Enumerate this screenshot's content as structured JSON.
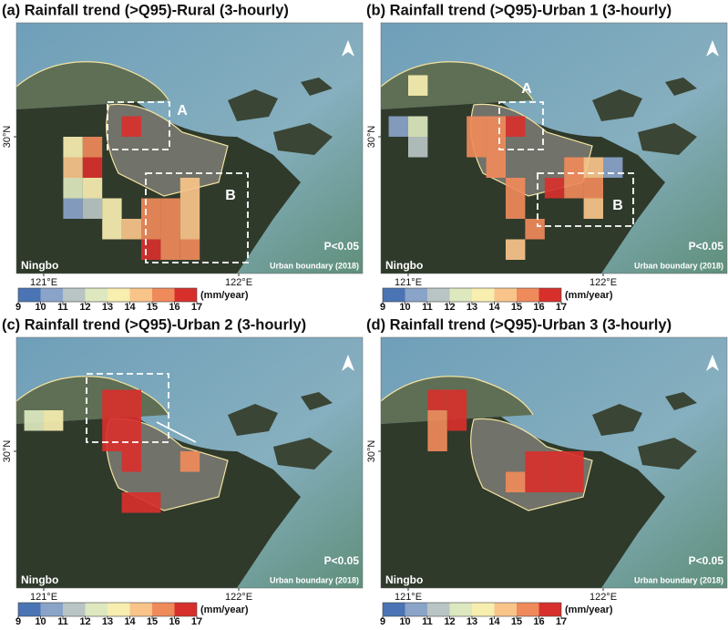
{
  "legend": {
    "unit": "(mm/year)",
    "ticks": [
      9,
      10,
      11,
      12,
      13,
      14,
      15,
      16,
      17
    ],
    "colors": [
      "#4a74b4",
      "#8aa3c8",
      "#b9c5c4",
      "#dde8bf",
      "#f7eeb0",
      "#f8c48a",
      "#ef8a5b",
      "#d7302c"
    ]
  },
  "panels": [
    {
      "title": "(a) Rainfall trend (>Q95)-Rural (3-hourly)",
      "lon_ticks": [
        {
          "value": 121,
          "label": "121°E"
        },
        {
          "value": 122,
          "label": "122°E"
        }
      ],
      "lat_ticks": [
        {
          "value": 30,
          "label": "30°N"
        }
      ],
      "place": "Ningbo",
      "significance": "P<0.05",
      "boundary": "Urban boundary (2018)",
      "boxes": [
        "A",
        "B"
      ],
      "cells": [
        {
          "lon": 121.45,
          "lat": 30.045,
          "value": 17
        },
        {
          "lon": 121.15,
          "lat": 29.955,
          "value": 13
        },
        {
          "lon": 121.25,
          "lat": 29.955,
          "value": 15
        },
        {
          "lon": 121.15,
          "lat": 29.865,
          "value": 14
        },
        {
          "lon": 121.25,
          "lat": 29.865,
          "value": 16
        },
        {
          "lon": 121.15,
          "lat": 29.775,
          "value": 12
        },
        {
          "lon": 121.25,
          "lat": 29.775,
          "value": 13
        },
        {
          "lon": 121.15,
          "lat": 29.685,
          "value": 10
        },
        {
          "lon": 121.25,
          "lat": 29.685,
          "value": 11
        },
        {
          "lon": 121.35,
          "lat": 29.685,
          "value": 13
        },
        {
          "lon": 121.35,
          "lat": 29.595,
          "value": 13
        },
        {
          "lon": 121.45,
          "lat": 29.595,
          "value": 14
        },
        {
          "lon": 121.75,
          "lat": 29.775,
          "value": 14
        },
        {
          "lon": 121.55,
          "lat": 29.685,
          "value": 15
        },
        {
          "lon": 121.65,
          "lat": 29.685,
          "value": 15
        },
        {
          "lon": 121.75,
          "lat": 29.685,
          "value": 14
        },
        {
          "lon": 121.55,
          "lat": 29.595,
          "value": 15
        },
        {
          "lon": 121.65,
          "lat": 29.595,
          "value": 15
        },
        {
          "lon": 121.75,
          "lat": 29.595,
          "value": 14
        },
        {
          "lon": 121.55,
          "lat": 29.505,
          "value": 16
        },
        {
          "lon": 121.65,
          "lat": 29.505,
          "value": 15
        },
        {
          "lon": 121.75,
          "lat": 29.505,
          "value": 15
        }
      ]
    },
    {
      "title": "(b) Rainfall trend (>Q95)-Urban 1 (3-hourly)",
      "lon_ticks": [
        {
          "value": 121,
          "label": "121°E"
        },
        {
          "value": 122,
          "label": "122°E"
        }
      ],
      "lat_ticks": [
        {
          "value": 30,
          "label": "30°N"
        }
      ],
      "place": "Ningbo",
      "significance": "P<0.05",
      "boundary": "Urban boundary (2018)",
      "boxes": [
        "A",
        "B"
      ],
      "cells": [
        {
          "lon": 121.05,
          "lat": 30.225,
          "value": 13
        },
        {
          "lon": 120.95,
          "lat": 30.045,
          "value": 10
        },
        {
          "lon": 121.05,
          "lat": 30.045,
          "value": 12
        },
        {
          "lon": 121.05,
          "lat": 29.955,
          "value": 11
        },
        {
          "lon": 121.35,
          "lat": 30.045,
          "value": 15
        },
        {
          "lon": 121.45,
          "lat": 30.045,
          "value": 15
        },
        {
          "lon": 121.35,
          "lat": 29.955,
          "value": 15
        },
        {
          "lon": 121.45,
          "lat": 29.955,
          "value": 15
        },
        {
          "lon": 121.45,
          "lat": 29.865,
          "value": 15
        },
        {
          "lon": 121.55,
          "lat": 29.775,
          "value": 15
        },
        {
          "lon": 121.55,
          "lat": 30.045,
          "value": 17
        },
        {
          "lon": 121.85,
          "lat": 29.865,
          "value": 15
        },
        {
          "lon": 121.95,
          "lat": 29.865,
          "value": 14
        },
        {
          "lon": 122.05,
          "lat": 29.865,
          "value": 10
        },
        {
          "lon": 121.75,
          "lat": 29.775,
          "value": 16
        },
        {
          "lon": 121.85,
          "lat": 29.775,
          "value": 15
        },
        {
          "lon": 121.95,
          "lat": 29.775,
          "value": 15
        },
        {
          "lon": 121.55,
          "lat": 29.685,
          "value": 15
        },
        {
          "lon": 121.95,
          "lat": 29.685,
          "value": 14
        },
        {
          "lon": 121.65,
          "lat": 29.595,
          "value": 15
        },
        {
          "lon": 121.55,
          "lat": 29.505,
          "value": 14
        }
      ]
    },
    {
      "title": "(c) Rainfall trend (>Q95)-Urban 2 (3-hourly)",
      "lon_ticks": [
        {
          "value": 121,
          "label": "121°E"
        },
        {
          "value": 122,
          "label": "122°E"
        }
      ],
      "lat_ticks": [
        {
          "value": 30,
          "label": "30°N"
        }
      ],
      "place": "Ningbo",
      "significance": "P<0.05",
      "boundary": "Urban boundary (2018)",
      "boxes": [],
      "cells": [
        {
          "lon": 120.95,
          "lat": 30.135,
          "value": 12
        },
        {
          "lon": 121.05,
          "lat": 30.135,
          "value": 13
        },
        {
          "lon": 121.35,
          "lat": 30.225,
          "value": 17
        },
        {
          "lon": 121.45,
          "lat": 30.225,
          "value": 16
        },
        {
          "lon": 121.35,
          "lat": 30.135,
          "value": 17
        },
        {
          "lon": 121.45,
          "lat": 30.135,
          "value": 17
        },
        {
          "lon": 121.35,
          "lat": 30.045,
          "value": 17
        },
        {
          "lon": 121.45,
          "lat": 30.045,
          "value": 17
        },
        {
          "lon": 121.45,
          "lat": 29.955,
          "value": 17
        },
        {
          "lon": 121.75,
          "lat": 29.955,
          "value": 15
        },
        {
          "lon": 121.45,
          "lat": 29.775,
          "value": 16
        },
        {
          "lon": 121.55,
          "lat": 29.775,
          "value": 16
        }
      ]
    },
    {
      "title": "(d) Rainfall trend (>Q95)-Urban 3 (3-hourly)",
      "lon_ticks": [
        {
          "value": 121,
          "label": "121°E"
        },
        {
          "value": 122,
          "label": "122°E"
        }
      ],
      "lat_ticks": [
        {
          "value": 30,
          "label": "30°N"
        }
      ],
      "place": "Ningbo",
      "significance": "P<0.05",
      "boundary": "Urban boundary (2018)",
      "boxes": [],
      "cells": [
        {
          "lon": 121.15,
          "lat": 30.225,
          "value": 16
        },
        {
          "lon": 121.25,
          "lat": 30.225,
          "value": 17
        },
        {
          "lon": 121.15,
          "lat": 30.135,
          "value": 15
        },
        {
          "lon": 121.25,
          "lat": 30.135,
          "value": 17
        },
        {
          "lon": 121.15,
          "lat": 30.045,
          "value": 15
        },
        {
          "lon": 121.65,
          "lat": 29.955,
          "value": 17
        },
        {
          "lon": 121.75,
          "lat": 29.955,
          "value": 17
        },
        {
          "lon": 121.85,
          "lat": 29.955,
          "value": 17
        },
        {
          "lon": 121.55,
          "lat": 29.865,
          "value": 15
        },
        {
          "lon": 121.65,
          "lat": 29.865,
          "value": 17
        },
        {
          "lon": 121.75,
          "lat": 29.865,
          "value": 17
        },
        {
          "lon": 121.85,
          "lat": 29.865,
          "value": 17
        }
      ]
    }
  ]
}
